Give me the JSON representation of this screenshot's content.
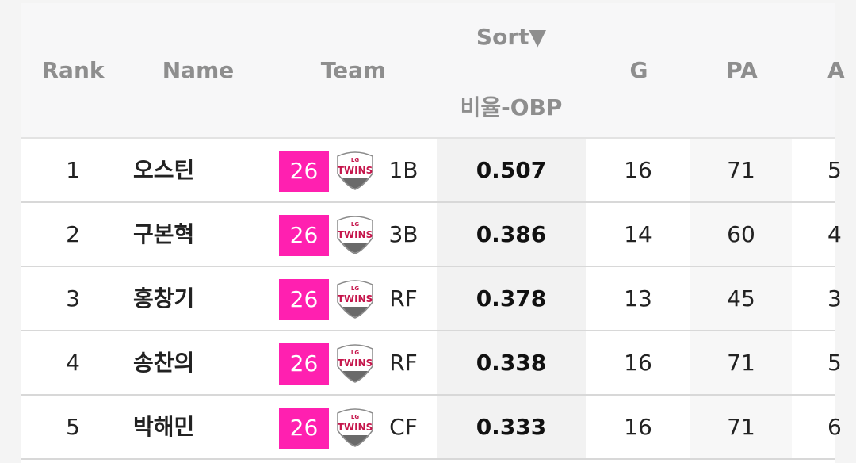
{
  "headers": {
    "rank": "Rank",
    "name": "Name",
    "team": "Team",
    "sort_label": "Sort▼",
    "sort_metric": "비율-OBP",
    "g": "G",
    "pa": "PA",
    "cut": "A"
  },
  "colors": {
    "badge": "#ff20b0",
    "logo_red": "#c5154b"
  },
  "logo_text": {
    "top": "LG",
    "main": "TWINS"
  },
  "rows": [
    {
      "rank": "1",
      "name": "오스틴",
      "number": "26",
      "pos": "1B",
      "obp": "0.507",
      "g": "16",
      "pa": "71",
      "cut": "5"
    },
    {
      "rank": "2",
      "name": "구본혁",
      "number": "26",
      "pos": "3B",
      "obp": "0.386",
      "g": "14",
      "pa": "60",
      "cut": "4"
    },
    {
      "rank": "3",
      "name": "홍창기",
      "number": "26",
      "pos": "RF",
      "obp": "0.378",
      "g": "13",
      "pa": "45",
      "cut": "3"
    },
    {
      "rank": "4",
      "name": "송찬의",
      "number": "26",
      "pos": "RF",
      "obp": "0.338",
      "g": "16",
      "pa": "71",
      "cut": "5"
    },
    {
      "rank": "5",
      "name": "박해민",
      "number": "26",
      "pos": "CF",
      "obp": "0.333",
      "g": "16",
      "pa": "71",
      "cut": "6"
    }
  ]
}
